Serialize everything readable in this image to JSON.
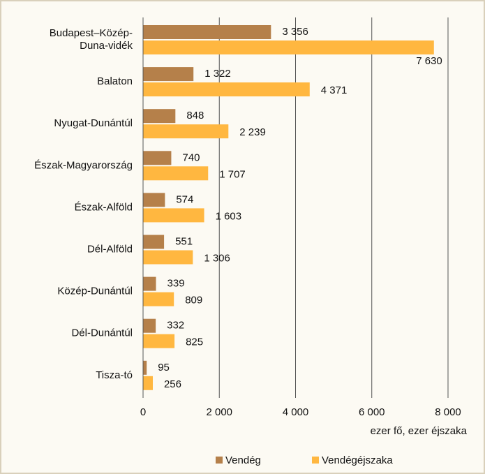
{
  "chart_data": {
    "type": "bar",
    "orientation": "horizontal",
    "categories": [
      "Budapest–Közép-\nDuna-vidék",
      "Balaton",
      "Nyugat-Dunántúl",
      "Észak-Magyarország",
      "Észak-Alföld",
      "Dél-Alföld",
      "Közép-Dunántúl",
      "Dél-Dunántúl",
      "Tisza-tó"
    ],
    "series": [
      {
        "name": "Vendég",
        "color": "#b5804a",
        "values": [
          3356,
          1322,
          848,
          740,
          574,
          551,
          339,
          332,
          95
        ],
        "value_labels": [
          "3 356",
          "1 322",
          "848",
          "740",
          "574",
          "551",
          "339",
          "332",
          "95"
        ]
      },
      {
        "name": "Vendégéjszaka",
        "color": "#ffb740",
        "values": [
          7630,
          4371,
          2239,
          1707,
          1603,
          1306,
          809,
          825,
          256
        ],
        "value_labels": [
          "7 630",
          "4 371",
          "2 239",
          "1 707",
          "1 603",
          "1 306",
          "809",
          "825",
          "256"
        ]
      }
    ],
    "xlabel": "ezer fő, ezer éjszaka",
    "xlim": [
      0,
      8000
    ],
    "xticks": [
      0,
      {
        "value": 2000,
        "label": "2 000"
      },
      {
        "value": 4000,
        "label": "4 000"
      },
      {
        "value": 6000,
        "label": "6 000"
      },
      {
        "value": 8000,
        "label": "8 000"
      }
    ],
    "grid": true,
    "legend": "bottom"
  }
}
